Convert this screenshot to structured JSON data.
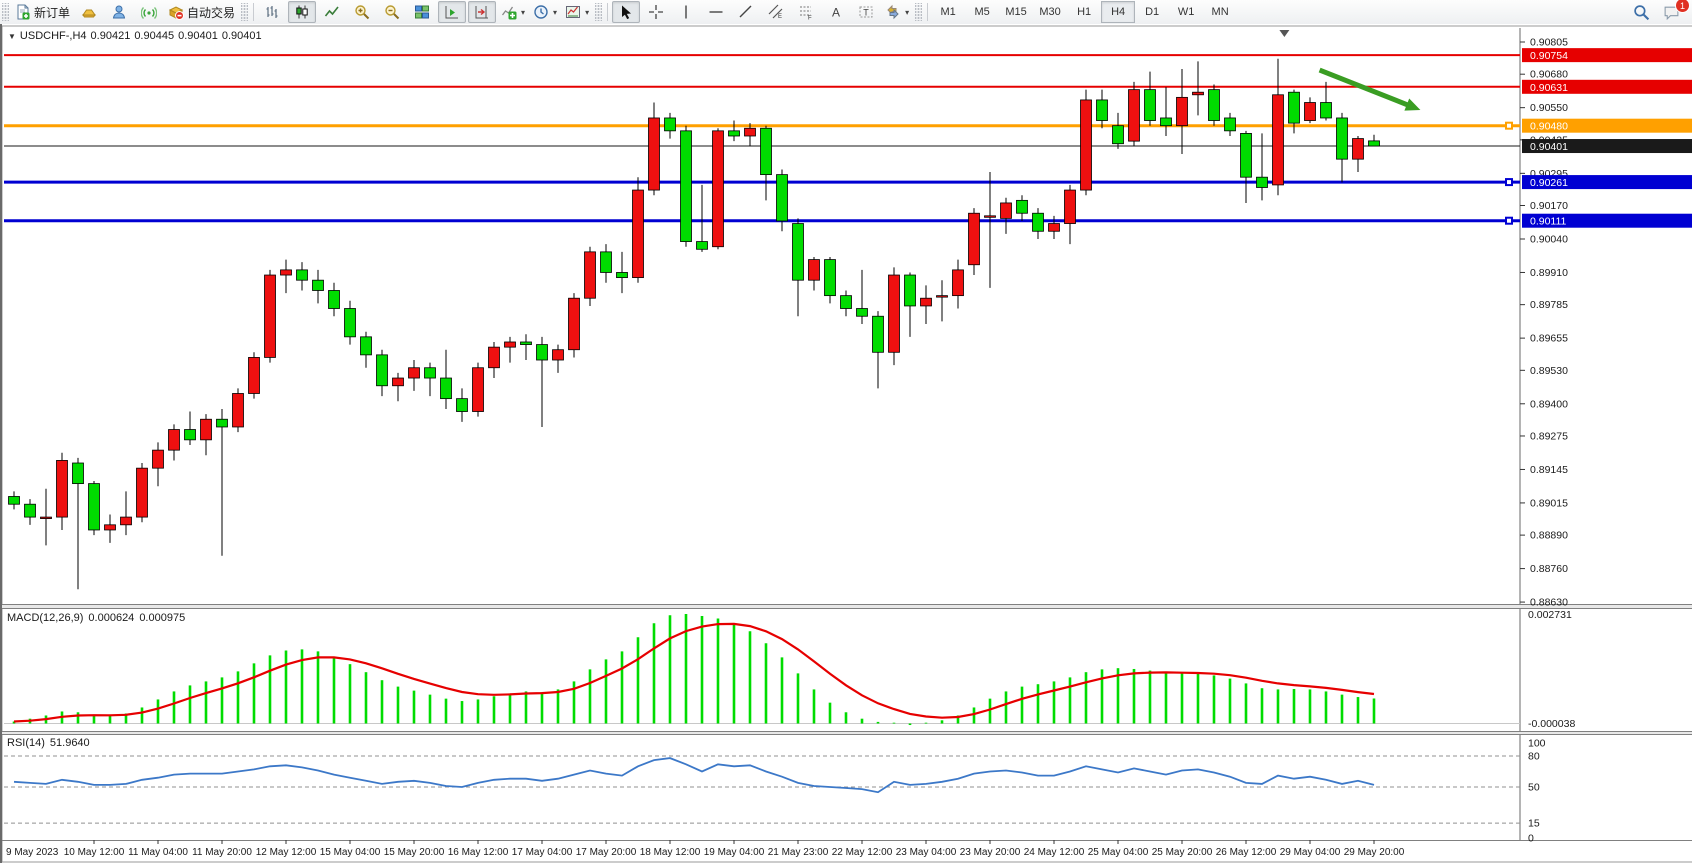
{
  "toolbar": {
    "groups": [
      {
        "name": "trade",
        "buttons": [
          {
            "name": "new-order-button",
            "icon": "new-order-icon",
            "label": "新订单"
          },
          {
            "name": "market-button",
            "icon": "gold-ingot-icon"
          },
          {
            "name": "community-button",
            "icon": "person-icon"
          },
          {
            "name": "signals-button",
            "icon": "signal-icon"
          },
          {
            "name": "autotrading-button",
            "icon": "autotrading-icon",
            "label": "自动交易"
          }
        ]
      },
      {
        "name": "chart-type",
        "buttons": [
          {
            "name": "bars-button",
            "icon": "bar-chart-icon"
          },
          {
            "name": "candles-button",
            "icon": "candle-chart-icon",
            "active": true
          },
          {
            "name": "line-chart-button",
            "icon": "line-chart-icon"
          },
          {
            "name": "zoom-in-button",
            "icon": "zoom-in-icon"
          },
          {
            "name": "zoom-out-button",
            "icon": "zoom-out-icon"
          },
          {
            "name": "tile-windows-button",
            "icon": "tile-windows-icon"
          },
          {
            "name": "auto-scroll-button",
            "icon": "auto-scroll-icon",
            "active": true
          },
          {
            "name": "chart-shift-button",
            "icon": "chart-shift-icon",
            "active": true
          },
          {
            "name": "indicators-button",
            "icon": "indicators-icon",
            "dropdown": true
          },
          {
            "name": "periods-button",
            "icon": "periods-icon",
            "dropdown": true
          },
          {
            "name": "templates-button",
            "icon": "templates-icon",
            "dropdown": true
          }
        ]
      },
      {
        "name": "objects",
        "buttons": [
          {
            "name": "cursor-button",
            "icon": "cursor-icon",
            "active": true
          },
          {
            "name": "crosshair-button",
            "icon": "crosshair-icon"
          },
          {
            "name": "vertical-line-button",
            "icon": "vertical-line-icon"
          },
          {
            "name": "horizontal-line-button",
            "icon": "horizontal-line-icon"
          },
          {
            "name": "trendline-button",
            "icon": "trendline-icon"
          },
          {
            "name": "equidistant-channel-button",
            "icon": "channel-icon"
          },
          {
            "name": "fibonacci-button",
            "icon": "fibonacci-icon"
          },
          {
            "name": "text-button",
            "icon": "text-icon"
          },
          {
            "name": "text-label-button",
            "icon": "text-label-icon"
          },
          {
            "name": "shapes-button",
            "icon": "shapes-icon",
            "dropdown": true
          }
        ]
      },
      {
        "name": "timeframes",
        "buttons": [
          {
            "name": "tf-m1-button",
            "label": "M1"
          },
          {
            "name": "tf-m5-button",
            "label": "M5"
          },
          {
            "name": "tf-m15-button",
            "label": "M15"
          },
          {
            "name": "tf-m30-button",
            "label": "M30"
          },
          {
            "name": "tf-h1-button",
            "label": "H1"
          },
          {
            "name": "tf-h4-button",
            "label": "H4",
            "active": true
          },
          {
            "name": "tf-d1-button",
            "label": "D1"
          },
          {
            "name": "tf-w1-button",
            "label": "W1"
          },
          {
            "name": "tf-mn-button",
            "label": "MN"
          }
        ]
      }
    ],
    "right_buttons": [
      {
        "name": "search-button",
        "icon": "search-icon"
      },
      {
        "name": "notifications-button",
        "icon": "chat-icon",
        "badge": "1"
      }
    ]
  },
  "chart": {
    "title": {
      "symbol": "USDCHF-,H4",
      "open": "0.90421",
      "high": "0.90445",
      "low": "0.90401",
      "close": "0.90401"
    },
    "dropdown_glyph": "▼"
  },
  "chart_data": {
    "type": "candlestick",
    "symbol": "USDCHF",
    "timeframe": "H4",
    "title": "USDCHF-,H4 0.90421 0.90445 0.90401 0.90401",
    "y_axis_ticks": [
      "0.90805",
      "0.90680",
      "0.90550",
      "0.90425",
      "0.90295",
      "0.90170",
      "0.90040",
      "0.89910",
      "0.89785",
      "0.89655",
      "0.89530",
      "0.89400",
      "0.89275",
      "0.89145",
      "0.89015",
      "0.88890",
      "0.88760",
      "0.88630"
    ],
    "x_axis_labels": [
      "9 May 2023",
      "10 May 12:00",
      "11 May 04:00",
      "11 May 20:00",
      "12 May 12:00",
      "15 May 04:00",
      "15 May 20:00",
      "16 May 12:00",
      "17 May 04:00",
      "17 May 20:00",
      "18 May 12:00",
      "19 May 04:00",
      "21 May 23:00",
      "22 May 12:00",
      "23 May 04:00",
      "23 May 20:00",
      "24 May 12:00",
      "25 May 04:00",
      "25 May 20:00",
      "26 May 12:00",
      "29 May 04:00",
      "29 May 20:00"
    ],
    "price_range": {
      "top": 0.90805,
      "bottom": 0.8863
    },
    "candles": [
      [
        0.8904,
        0.8906,
        0.8899,
        0.8901
      ],
      [
        0.8901,
        0.8903,
        0.8893,
        0.8896
      ],
      [
        0.8896,
        0.8907,
        0.8885,
        0.8896
      ],
      [
        0.8896,
        0.8921,
        0.8891,
        0.8918
      ],
      [
        0.8917,
        0.8919,
        0.8868,
        0.8909
      ],
      [
        0.8909,
        0.891,
        0.8889,
        0.8891
      ],
      [
        0.8891,
        0.8897,
        0.8886,
        0.8893
      ],
      [
        0.8893,
        0.8906,
        0.8889,
        0.8896
      ],
      [
        0.8896,
        0.8917,
        0.8894,
        0.8915
      ],
      [
        0.8915,
        0.8925,
        0.8908,
        0.8922
      ],
      [
        0.8922,
        0.8932,
        0.8918,
        0.893
      ],
      [
        0.893,
        0.8937,
        0.8924,
        0.8926
      ],
      [
        0.8926,
        0.8936,
        0.892,
        0.8934
      ],
      [
        0.8934,
        0.8938,
        0.8881,
        0.8931
      ],
      [
        0.8931,
        0.8946,
        0.8929,
        0.8944
      ],
      [
        0.8944,
        0.896,
        0.8942,
        0.8958
      ],
      [
        0.8958,
        0.8992,
        0.8956,
        0.899
      ],
      [
        0.899,
        0.8996,
        0.8983,
        0.8992
      ],
      [
        0.8992,
        0.8995,
        0.8984,
        0.8988
      ],
      [
        0.8988,
        0.8992,
        0.8979,
        0.8984
      ],
      [
        0.8984,
        0.8987,
        0.8974,
        0.8977
      ],
      [
        0.8977,
        0.898,
        0.8963,
        0.8966
      ],
      [
        0.8966,
        0.8968,
        0.8954,
        0.8959
      ],
      [
        0.8959,
        0.8961,
        0.8943,
        0.8947
      ],
      [
        0.8947,
        0.8952,
        0.8941,
        0.895
      ],
      [
        0.895,
        0.8957,
        0.8945,
        0.8954
      ],
      [
        0.8954,
        0.8956,
        0.8943,
        0.895
      ],
      [
        0.895,
        0.8961,
        0.8938,
        0.8942
      ],
      [
        0.8942,
        0.8946,
        0.8933,
        0.8937
      ],
      [
        0.8937,
        0.8956,
        0.8935,
        0.8954
      ],
      [
        0.8954,
        0.8964,
        0.895,
        0.8962
      ],
      [
        0.8962,
        0.8966,
        0.8956,
        0.8964
      ],
      [
        0.8964,
        0.8967,
        0.8957,
        0.8963
      ],
      [
        0.8963,
        0.8966,
        0.8931,
        0.8957
      ],
      [
        0.8957,
        0.8963,
        0.8952,
        0.8961
      ],
      [
        0.8961,
        0.8983,
        0.8958,
        0.8981
      ],
      [
        0.8981,
        0.9001,
        0.8978,
        0.8999
      ],
      [
        0.8999,
        0.9002,
        0.8987,
        0.8991
      ],
      [
        0.8991,
        0.8999,
        0.8983,
        0.8989
      ],
      [
        0.8989,
        0.9028,
        0.8987,
        0.9023
      ],
      [
        0.9023,
        0.9057,
        0.9021,
        0.9051
      ],
      [
        0.9051,
        0.9053,
        0.9043,
        0.9046
      ],
      [
        0.9046,
        0.9048,
        0.9001,
        0.9003
      ],
      [
        0.9003,
        0.9025,
        0.8999,
        0.9
      ],
      [
        0.9001,
        0.9047,
        0.9,
        0.9046
      ],
      [
        0.9046,
        0.905,
        0.9042,
        0.9044
      ],
      [
        0.9044,
        0.9049,
        0.904,
        0.9047
      ],
      [
        0.9047,
        0.9048,
        0.9019,
        0.9029
      ],
      [
        0.9029,
        0.9031,
        0.9007,
        0.9011
      ],
      [
        0.901,
        0.9012,
        0.8974,
        0.8988
      ],
      [
        0.8988,
        0.8997,
        0.8984,
        0.8996
      ],
      [
        0.8996,
        0.8997,
        0.8979,
        0.8982
      ],
      [
        0.8982,
        0.8984,
        0.8974,
        0.8977
      ],
      [
        0.8977,
        0.8992,
        0.8971,
        0.8974
      ],
      [
        0.8974,
        0.8976,
        0.8946,
        0.896
      ],
      [
        0.896,
        0.8993,
        0.8955,
        0.899
      ],
      [
        0.899,
        0.8991,
        0.8966,
        0.8978
      ],
      [
        0.8978,
        0.8986,
        0.8971,
        0.8981
      ],
      [
        0.8982,
        0.8988,
        0.8972,
        0.8982
      ],
      [
        0.8982,
        0.8996,
        0.8977,
        0.8992
      ],
      [
        0.8994,
        0.9016,
        0.899,
        0.9014
      ],
      [
        0.9013,
        0.903,
        0.8985,
        0.9013
      ],
      [
        0.9012,
        0.902,
        0.9006,
        0.9018
      ],
      [
        0.9019,
        0.9021,
        0.9011,
        0.9014
      ],
      [
        0.9014,
        0.9016,
        0.9004,
        0.9007
      ],
      [
        0.9007,
        0.9013,
        0.9004,
        0.901
      ],
      [
        0.901,
        0.9025,
        0.9002,
        0.9023
      ],
      [
        0.9023,
        0.9062,
        0.9021,
        0.9058
      ],
      [
        0.9058,
        0.9062,
        0.9047,
        0.905
      ],
      [
        0.9048,
        0.9053,
        0.9039,
        0.9041
      ],
      [
        0.9042,
        0.9065,
        0.904,
        0.9062
      ],
      [
        0.9062,
        0.9069,
        0.9048,
        0.905
      ],
      [
        0.9051,
        0.9063,
        0.9044,
        0.9048
      ],
      [
        0.9048,
        0.907,
        0.9037,
        0.9059
      ],
      [
        0.906,
        0.9073,
        0.9052,
        0.9061
      ],
      [
        0.9062,
        0.9064,
        0.9048,
        0.905
      ],
      [
        0.9051,
        0.9053,
        0.9044,
        0.9046
      ],
      [
        0.9045,
        0.9046,
        0.9018,
        0.9028
      ],
      [
        0.9028,
        0.9045,
        0.9019,
        0.9024
      ],
      [
        0.9025,
        0.9074,
        0.9021,
        0.906
      ],
      [
        0.9061,
        0.9062,
        0.9045,
        0.9049
      ],
      [
        0.905,
        0.9059,
        0.9049,
        0.9057
      ],
      [
        0.9057,
        0.9065,
        0.905,
        0.9051
      ],
      [
        0.9051,
        0.9053,
        0.9026,
        0.9035
      ],
      [
        0.9035,
        0.9044,
        0.903,
        0.9043
      ],
      [
        0.90421,
        0.90445,
        0.90401,
        0.90401
      ]
    ],
    "levels": [
      {
        "label": "0.90754",
        "price": 0.90754,
        "color": "#e60000",
        "width": 2,
        "handle": false
      },
      {
        "label": "0.90631",
        "price": 0.90631,
        "color": "#e60000",
        "width": 2,
        "handle": false
      },
      {
        "label": "0.90480",
        "price": 0.9048,
        "color": "#ffa000",
        "width": 3,
        "handle": true
      },
      {
        "label": "0.90401",
        "price": 0.90401,
        "color": "#1a1a1a",
        "width": 1,
        "handle": false
      },
      {
        "label": "0.90261",
        "price": 0.90261,
        "color": "#0000d2",
        "width": 3,
        "handle": true
      },
      {
        "label": "0.90111",
        "price": 0.90111,
        "color": "#0000d2",
        "width": 3,
        "handle": true
      }
    ],
    "arrow_annotation": {
      "from_bar": 81.6,
      "from_price": 0.90696,
      "to_bar": 87.9,
      "to_price": 0.90541,
      "color": "#3a9d23"
    },
    "shift_marker_bar": 79.4,
    "macd": {
      "label": "MACD(12,26,9)",
      "value_main": "0.000624",
      "value_signal": "0.000975",
      "axis_max": "0.002731",
      "axis_min": "-0.000038",
      "hist": [
        5e-05,
        0.00012,
        0.0002,
        0.0003,
        0.00028,
        0.00022,
        0.0002,
        0.00025,
        0.0004,
        0.0006,
        0.0008,
        0.00095,
        0.00105,
        0.00115,
        0.0013,
        0.0015,
        0.0017,
        0.00182,
        0.00185,
        0.0018,
        0.00165,
        0.00148,
        0.00128,
        0.00108,
        0.00092,
        0.00082,
        0.00072,
        0.00062,
        0.00056,
        0.0006,
        0.00068,
        0.00075,
        0.0008,
        0.00078,
        0.00085,
        0.00105,
        0.00135,
        0.0016,
        0.0018,
        0.00215,
        0.0025,
        0.0027,
        0.002731,
        0.00268,
        0.00262,
        0.0025,
        0.0023,
        0.002,
        0.00165,
        0.00125,
        0.00085,
        0.00052,
        0.00028,
        0.00012,
        4e-05,
        2e-05,
        -3.8e-05,
        2e-05,
        8e-05,
        0.0002,
        0.0004,
        0.00062,
        0.0008,
        0.00092,
        0.00098,
        0.00105,
        0.00115,
        0.00128,
        0.00135,
        0.00138,
        0.00136,
        0.00132,
        0.00128,
        0.00125,
        0.00124,
        0.0012,
        0.00112,
        0.001,
        0.00088,
        0.00085,
        0.00086,
        0.00085,
        0.0008,
        0.00072,
        0.00066,
        0.000624
      ],
      "colors": {
        "hist": "#00dc00",
        "signal": "#e60000"
      }
    },
    "rsi": {
      "label": "RSI(14)",
      "value": "51.9640",
      "axis_labels": [
        "100",
        "80",
        "50",
        "15",
        "0"
      ],
      "level_lines": [
        80,
        50,
        15
      ],
      "series": [
        55,
        54,
        53,
        57,
        55,
        52,
        52,
        53,
        57,
        59,
        62,
        63,
        63,
        63,
        65,
        67,
        70,
        71,
        69,
        66,
        62,
        59,
        56,
        53,
        55,
        56,
        54,
        51,
        50,
        54,
        57,
        58,
        58,
        56,
        58,
        62,
        66,
        63,
        61,
        70,
        76,
        78,
        72,
        65,
        72,
        70,
        71,
        65,
        60,
        54,
        51,
        50,
        49,
        48,
        45,
        55,
        52,
        53,
        55,
        58,
        63,
        65,
        66,
        64,
        61,
        61,
        65,
        70,
        67,
        64,
        68,
        65,
        62,
        66,
        67,
        64,
        60,
        54,
        53,
        61,
        58,
        60,
        57,
        53,
        56,
        52
      ],
      "color": "#3c78c8"
    },
    "colors": {
      "bull": "#ee1010",
      "bear": "#00dc00",
      "outline": "#000000",
      "axis_text": "#1a1a1a",
      "border": "#6a6a6a"
    }
  }
}
